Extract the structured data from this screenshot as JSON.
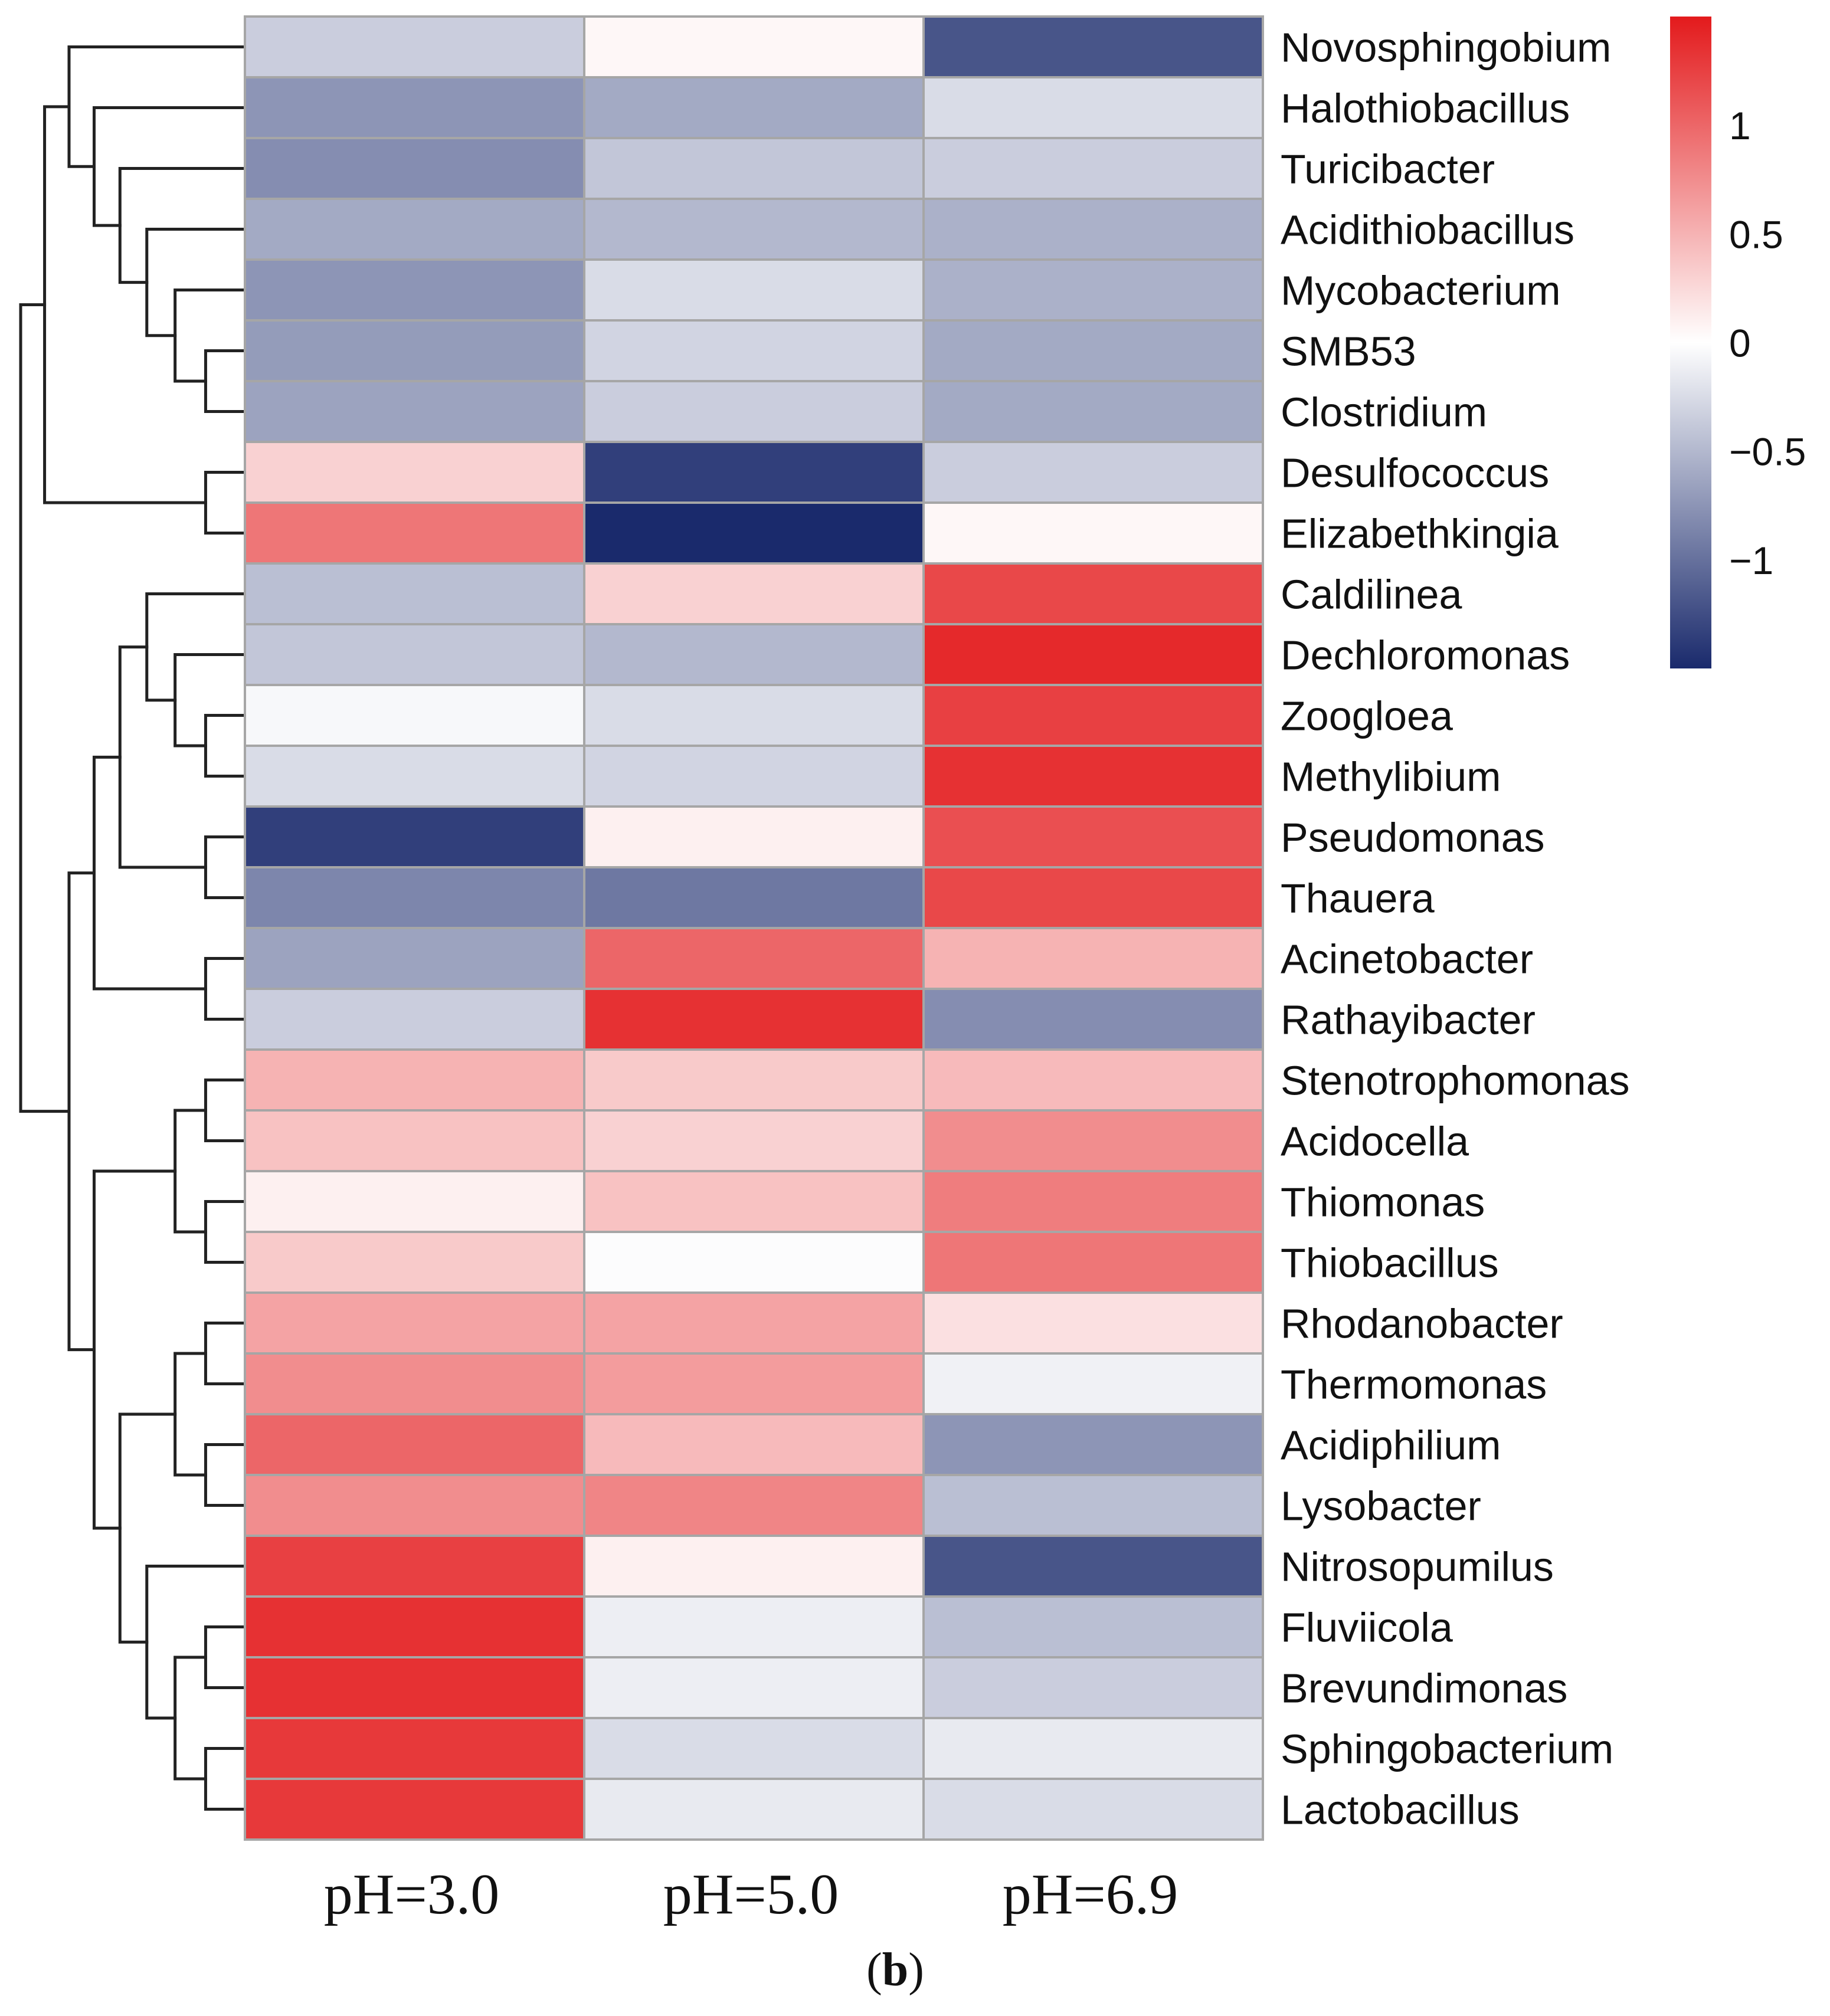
{
  "chart_data": {
    "type": "heatmap",
    "title": "",
    "caption_open": "(",
    "caption_letter": "b",
    "caption_close": ")",
    "columns": [
      "pH=3.0",
      "pH=5.0",
      "pH=6.9"
    ],
    "rows": [
      {
        "name": "Novosphingobium",
        "values": [
          -0.35,
          0.05,
          -1.2
        ]
      },
      {
        "name": "Halothiobacillus",
        "values": [
          -0.75,
          -0.6,
          -0.25
        ]
      },
      {
        "name": "Turicibacter",
        "values": [
          -0.8,
          -0.4,
          -0.35
        ]
      },
      {
        "name": "Acidithiobacillus",
        "values": [
          -0.6,
          -0.5,
          -0.55
        ]
      },
      {
        "name": "Mycobacterium",
        "values": [
          -0.75,
          -0.25,
          -0.55
        ]
      },
      {
        "name": "SMB53",
        "values": [
          -0.7,
          -0.3,
          -0.6
        ]
      },
      {
        "name": "Clostridium",
        "values": [
          -0.65,
          -0.35,
          -0.6
        ]
      },
      {
        "name": "Desulfococcus",
        "values": [
          0.3,
          -1.35,
          -0.35
        ]
      },
      {
        "name": "Elizabethkingia",
        "values": [
          0.9,
          -1.5,
          0.05
        ]
      },
      {
        "name": "Caldilinea",
        "values": [
          -0.45,
          0.3,
          1.2
        ]
      },
      {
        "name": "Dechloromonas",
        "values": [
          -0.4,
          -0.5,
          1.4
        ]
      },
      {
        "name": "Zoogloea",
        "values": [
          -0.05,
          -0.25,
          1.25
        ]
      },
      {
        "name": "Methylibium",
        "values": [
          -0.25,
          -0.3,
          1.35
        ]
      },
      {
        "name": "Pseudomonas",
        "values": [
          -1.35,
          0.1,
          1.15
        ]
      },
      {
        "name": "Thauera",
        "values": [
          -0.85,
          -0.95,
          1.2
        ]
      },
      {
        "name": "Acinetobacter",
        "values": [
          -0.65,
          1.0,
          0.5
        ]
      },
      {
        "name": "Rathayibacter",
        "values": [
          -0.35,
          1.35,
          -0.8
        ]
      },
      {
        "name": "Stenotrophomonas",
        "values": [
          0.5,
          0.35,
          0.45
        ]
      },
      {
        "name": "Acidocella",
        "values": [
          0.4,
          0.3,
          0.75
        ]
      },
      {
        "name": "Thiomonas",
        "values": [
          0.1,
          0.4,
          0.85
        ]
      },
      {
        "name": "Thiobacillus",
        "values": [
          0.35,
          -0.02,
          0.9
        ]
      },
      {
        "name": "Rhodanobacter",
        "values": [
          0.6,
          0.6,
          0.2
        ]
      },
      {
        "name": "Thermomonas",
        "values": [
          0.75,
          0.65,
          -0.1
        ]
      },
      {
        "name": "Acidiphilium",
        "values": [
          1.0,
          0.45,
          -0.75
        ]
      },
      {
        "name": "Lysobacter",
        "values": [
          0.75,
          0.8,
          -0.45
        ]
      },
      {
        "name": "Nitrosopumilus",
        "values": [
          1.25,
          0.1,
          -1.2
        ]
      },
      {
        "name": "Fluviicola",
        "values": [
          1.35,
          -0.12,
          -0.45
        ]
      },
      {
        "name": "Brevundimonas",
        "values": [
          1.35,
          -0.12,
          -0.35
        ]
      },
      {
        "name": "Sphingobacterium",
        "values": [
          1.3,
          -0.25,
          -0.15
        ]
      },
      {
        "name": "Lactobacillus",
        "values": [
          1.3,
          -0.15,
          -0.25
        ]
      }
    ],
    "color_scale": {
      "min": -1.5,
      "max": 1.5,
      "low_color": "#1a2a6c",
      "mid_color": "#ffffff",
      "high_color": "#e31a1c",
      "ticks": [
        {
          "value": 1,
          "label": "1"
        },
        {
          "value": 0.5,
          "label": "0.5"
        },
        {
          "value": 0,
          "label": "0"
        },
        {
          "value": -0.5,
          "label": "−0.5"
        },
        {
          "value": -1,
          "label": "−1"
        }
      ]
    },
    "row_dendrogram_order": [
      "Novosphingobium",
      "Halothiobacillus",
      "Turicibacter",
      "Acidithiobacillus",
      "Mycobacterium",
      "SMB53",
      "Clostridium",
      "Desulfococcus",
      "Elizabethkingia",
      "Caldilinea",
      "Dechloromonas",
      "Zoogloea",
      "Methylibium",
      "Pseudomonas",
      "Thauera",
      "Acinetobacter",
      "Rathayibacter",
      "Stenotrophomonas",
      "Acidocella",
      "Thiomonas",
      "Thiobacillus",
      "Rhodanobacter",
      "Thermomonas",
      "Acidiphilium",
      "Lysobacter",
      "Nitrosopumilus",
      "Fluviicola",
      "Brevundimonas",
      "Sphingobacterium",
      "Lactobacillus"
    ]
  }
}
